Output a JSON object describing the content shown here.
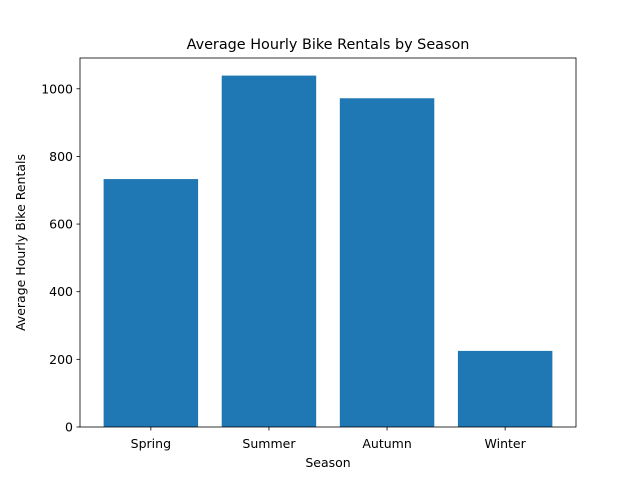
{
  "chart_data": {
    "type": "bar",
    "title": "Average Hourly Bike Rentals by Season",
    "xlabel": "Season",
    "ylabel": "Average Hourly Bike Rentals",
    "categories": [
      "Spring",
      "Summer",
      "Autumn",
      "Winter"
    ],
    "values": [
      733,
      1039,
      972,
      225
    ],
    "ylim": [
      0,
      1091
    ],
    "yticks": [
      0,
      200,
      400,
      600,
      800,
      1000
    ],
    "grid": false,
    "legend": "none",
    "bar_color": "#1f77b4"
  }
}
